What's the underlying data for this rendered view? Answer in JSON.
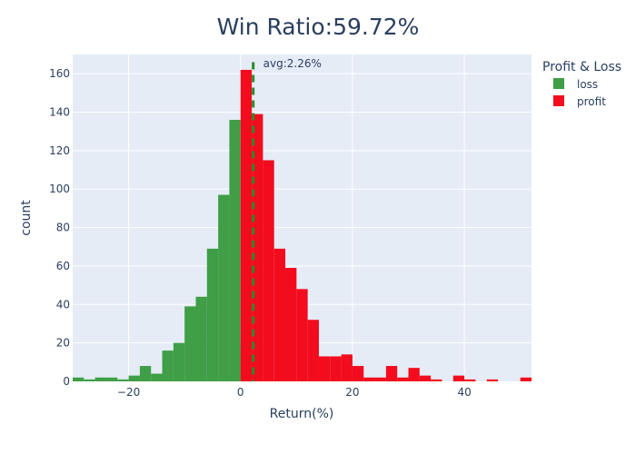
{
  "chart_data": {
    "type": "bar",
    "title": "Win Ratio:59.72%",
    "xlabel": "Return(%)",
    "ylabel": "count",
    "xlim": [
      -30,
      52
    ],
    "ylim": [
      0,
      170
    ],
    "x_ticks": [
      -20,
      0,
      20,
      40
    ],
    "y_ticks": [
      0,
      20,
      40,
      60,
      80,
      100,
      120,
      140,
      160
    ],
    "grid": true,
    "bin_width": 2,
    "legend": {
      "title": "Profit & Loss",
      "placement": "right"
    },
    "series": [
      {
        "name": "loss",
        "color": "#3f9e46",
        "bins": [
          {
            "x0": -30,
            "x1": -28,
            "count": 2
          },
          {
            "x0": -28,
            "x1": -26,
            "count": 1
          },
          {
            "x0": -26,
            "x1": -24,
            "count": 2
          },
          {
            "x0": -24,
            "x1": -22,
            "count": 2
          },
          {
            "x0": -22,
            "x1": -20,
            "count": 1
          },
          {
            "x0": -20,
            "x1": -18,
            "count": 3
          },
          {
            "x0": -18,
            "x1": -16,
            "count": 8
          },
          {
            "x0": -16,
            "x1": -14,
            "count": 4
          },
          {
            "x0": -14,
            "x1": -12,
            "count": 16
          },
          {
            "x0": -12,
            "x1": -10,
            "count": 20
          },
          {
            "x0": -10,
            "x1": -8,
            "count": 39
          },
          {
            "x0": -8,
            "x1": -6,
            "count": 44
          },
          {
            "x0": -6,
            "x1": -4,
            "count": 69
          },
          {
            "x0": -4,
            "x1": -2,
            "count": 97
          },
          {
            "x0": -2,
            "x1": 0,
            "count": 136
          },
          {
            "x0": 0,
            "x1": 2,
            "count": 18
          }
        ]
      },
      {
        "name": "profit",
        "color": "#f20c1e",
        "bins": [
          {
            "x0": 0,
            "x1": 2,
            "count": 162
          },
          {
            "x0": 2,
            "x1": 4,
            "count": 139
          },
          {
            "x0": 4,
            "x1": 6,
            "count": 115
          },
          {
            "x0": 6,
            "x1": 8,
            "count": 69
          },
          {
            "x0": 8,
            "x1": 10,
            "count": 59
          },
          {
            "x0": 10,
            "x1": 12,
            "count": 48
          },
          {
            "x0": 12,
            "x1": 14,
            "count": 32
          },
          {
            "x0": 14,
            "x1": 16,
            "count": 13
          },
          {
            "x0": 16,
            "x1": 18,
            "count": 13
          },
          {
            "x0": 18,
            "x1": 20,
            "count": 14
          },
          {
            "x0": 20,
            "x1": 22,
            "count": 8
          },
          {
            "x0": 22,
            "x1": 24,
            "count": 2
          },
          {
            "x0": 24,
            "x1": 26,
            "count": 2
          },
          {
            "x0": 26,
            "x1": 28,
            "count": 8
          },
          {
            "x0": 28,
            "x1": 30,
            "count": 2
          },
          {
            "x0": 30,
            "x1": 32,
            "count": 7
          },
          {
            "x0": 32,
            "x1": 34,
            "count": 3
          },
          {
            "x0": 34,
            "x1": 36,
            "count": 1
          },
          {
            "x0": 36,
            "x1": 38,
            "count": 0
          },
          {
            "x0": 38,
            "x1": 40,
            "count": 3
          },
          {
            "x0": 40,
            "x1": 42,
            "count": 1
          },
          {
            "x0": 42,
            "x1": 44,
            "count": 0
          },
          {
            "x0": 44,
            "x1": 46,
            "count": 1
          },
          {
            "x0": 46,
            "x1": 48,
            "count": 0
          },
          {
            "x0": 48,
            "x1": 50,
            "count": 0
          },
          {
            "x0": 50,
            "x1": 52,
            "count": 2
          }
        ]
      }
    ],
    "avg_line": {
      "x": 2.26,
      "label": "avg:2.26%",
      "color": "#2a8a2a",
      "style": "dashed"
    }
  },
  "colors": {
    "plot_background": "#e5ecf6",
    "grid": "#ffffff",
    "text": "#2a3f5f"
  }
}
